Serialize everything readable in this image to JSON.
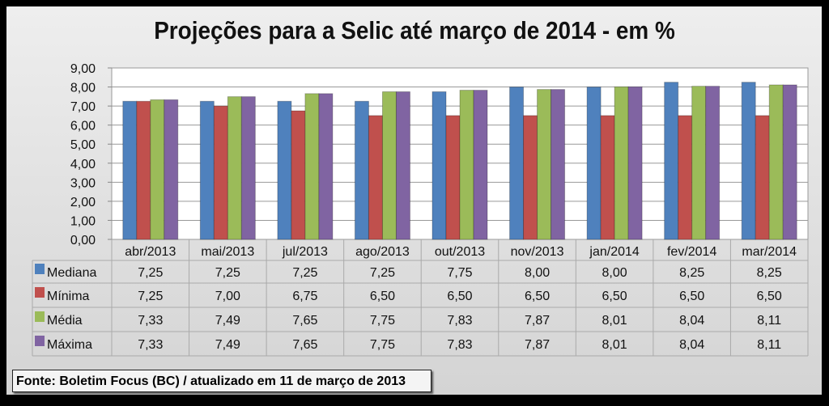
{
  "chart_data": {
    "type": "bar",
    "title": "Projeções para a Selic até março de 2014 - em %",
    "categories": [
      "abr/2013",
      "mai/2013",
      "jul/2013",
      "ago/2013",
      "out/2013",
      "nov/2013",
      "jan/2014",
      "fev/2014",
      "mar/2014"
    ],
    "ylim": [
      0,
      9
    ],
    "yticks": [
      "0,00",
      "1,00",
      "2,00",
      "3,00",
      "4,00",
      "5,00",
      "6,00",
      "7,00",
      "8,00",
      "9,00"
    ],
    "grid": true,
    "legend": "data-table",
    "series": [
      {
        "name": "Mediana",
        "color": "#4f81bd",
        "values": [
          7.25,
          7.25,
          7.25,
          7.25,
          7.75,
          8.0,
          8.0,
          8.25,
          8.25
        ],
        "labels": [
          "7,25",
          "7,25",
          "7,25",
          "7,25",
          "7,75",
          "8,00",
          "8,00",
          "8,25",
          "8,25"
        ]
      },
      {
        "name": "Mínima",
        "color": "#c0504d",
        "values": [
          7.25,
          7.0,
          6.75,
          6.5,
          6.5,
          6.5,
          6.5,
          6.5,
          6.5
        ],
        "labels": [
          "7,25",
          "7,00",
          "6,75",
          "6,50",
          "6,50",
          "6,50",
          "6,50",
          "6,50",
          "6,50"
        ]
      },
      {
        "name": "Média",
        "color": "#9bbb59",
        "values": [
          7.33,
          7.49,
          7.65,
          7.75,
          7.83,
          7.87,
          8.01,
          8.04,
          8.11
        ],
        "labels": [
          "7,33",
          "7,49",
          "7,65",
          "7,75",
          "7,83",
          "7,87",
          "8,01",
          "8,04",
          "8,11"
        ]
      },
      {
        "name": "Máxima",
        "color": "#8064a2",
        "values": [
          7.33,
          7.49,
          7.65,
          7.75,
          7.83,
          7.87,
          8.01,
          8.04,
          8.11
        ],
        "labels": [
          "7,33",
          "7,49",
          "7,65",
          "7,75",
          "7,83",
          "7,87",
          "8,01",
          "8,04",
          "8,11"
        ]
      }
    ]
  },
  "footer": "Fonte: Boletim Focus (BC) / atualizado  em 11 de março de 2013"
}
